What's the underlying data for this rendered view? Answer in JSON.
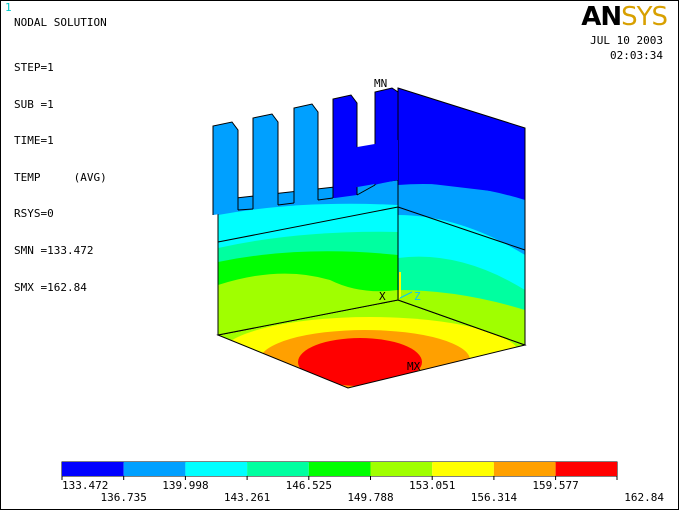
{
  "window_number": "1",
  "title": "NODAL SOLUTION",
  "info_lines": [
    "STEP=1",
    "SUB =1",
    "TIME=1",
    "TEMP     (AVG)",
    "RSYS=0",
    "SMN =133.472",
    "SMX =162.84"
  ],
  "logo": {
    "prefix": "AN",
    "suffix": "SYS"
  },
  "date": "JUL 10 2003",
  "time": "02:03:34",
  "markers": {
    "min": "MN",
    "max": "MX",
    "axis_x": "X",
    "axis_z": "Z"
  },
  "colors": {
    "band1": "#0000ff",
    "band2": "#00a0ff",
    "band3": "#00ffff",
    "band4": "#00ffa0",
    "band5": "#00ff00",
    "band6": "#a0ff00",
    "band7": "#ffff00",
    "band8": "#ffa000",
    "band9": "#ff0000",
    "logo_accent": "#d8a000"
  },
  "legend": {
    "colors": [
      "#0000ff",
      "#00a0ff",
      "#00ffff",
      "#00ffa0",
      "#00ff00",
      "#a0ff00",
      "#ffff00",
      "#ffa000",
      "#ff0000"
    ],
    "upper_labels": [
      "133.472",
      "139.998",
      "146.525",
      "153.051",
      "159.577"
    ],
    "lower_labels": [
      "136.735",
      "143.261",
      "149.788",
      "156.314",
      "162.84"
    ]
  }
}
